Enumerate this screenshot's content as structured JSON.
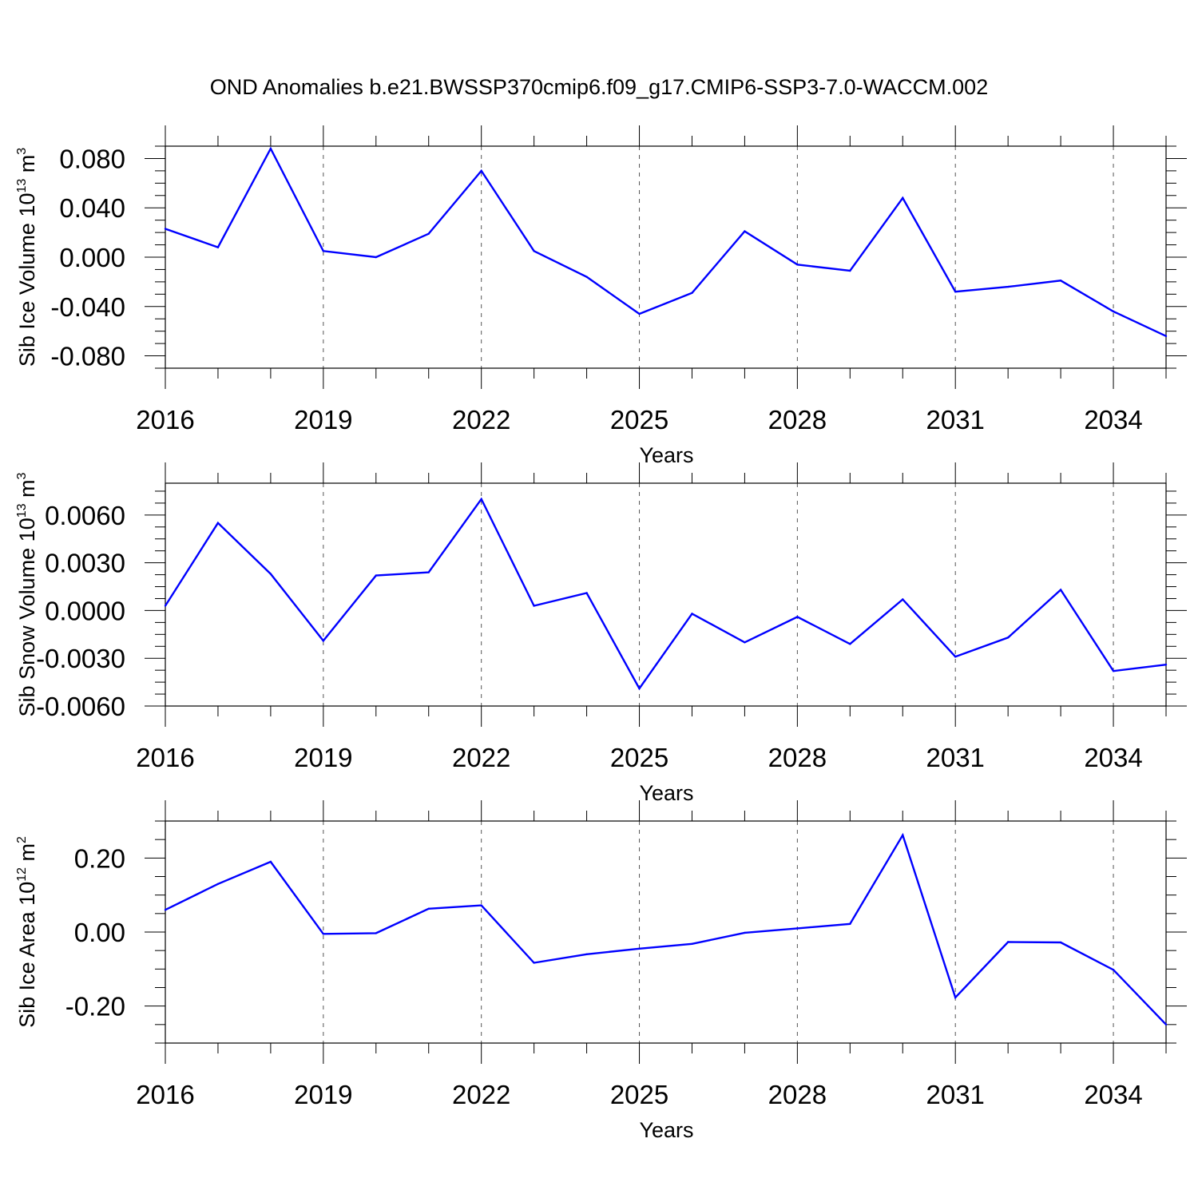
{
  "title": "OND Anomalies b.e21.BWSSP370cmip6.f09_g17.CMIP6-SSP3-7.0-WACCM.002",
  "chart_data": [
    {
      "type": "line",
      "xlabel": "Years",
      "ylabel_main": "Sib Ice Volume 10",
      "ylabel_exp": "13",
      "ylabel_unit": " m",
      "ylabel_unit_exp": "3",
      "xlim": [
        2016,
        2035
      ],
      "ylim": [
        -0.09,
        0.09
      ],
      "xticks": [
        2016,
        2019,
        2022,
        2025,
        2028,
        2031,
        2034
      ],
      "yticks": [
        0.08,
        0.04,
        0.0,
        -0.04,
        -0.08
      ],
      "ytick_labels": [
        "0.080",
        "0.040",
        "0.000",
        "-0.040",
        "-0.080"
      ],
      "grid": "dashed vertical at labeled years",
      "color": "#0000ff",
      "x": [
        2016,
        2017,
        2018,
        2019,
        2020,
        2021,
        2022,
        2023,
        2024,
        2025,
        2026,
        2027,
        2028,
        2029,
        2030,
        2031,
        2032,
        2033,
        2034,
        2035
      ],
      "y": [
        0.023,
        0.008,
        0.088,
        0.005,
        0.0,
        0.019,
        0.07,
        0.005,
        -0.016,
        -0.046,
        -0.029,
        0.021,
        -0.006,
        -0.011,
        0.048,
        -0.028,
        -0.024,
        -0.019,
        -0.044,
        -0.064
      ]
    },
    {
      "type": "line",
      "xlabel": "Years",
      "ylabel_main": "Sib Snow Volume 10",
      "ylabel_exp": "13",
      "ylabel_unit": " m",
      "ylabel_unit_exp": "3",
      "xlim": [
        2016,
        2035
      ],
      "ylim": [
        -0.006,
        0.008
      ],
      "xticks": [
        2016,
        2019,
        2022,
        2025,
        2028,
        2031,
        2034
      ],
      "yticks": [
        0.006,
        0.003,
        0.0,
        -0.003,
        -0.006
      ],
      "ytick_labels": [
        "0.0060",
        "0.0030",
        "0.0000",
        "-0.0030",
        "-0.0060"
      ],
      "grid": "dashed vertical at labeled years",
      "color": "#0000ff",
      "x": [
        2016,
        2017,
        2018,
        2019,
        2020,
        2021,
        2022,
        2023,
        2024,
        2025,
        2026,
        2027,
        2028,
        2029,
        2030,
        2031,
        2032,
        2033,
        2034,
        2035
      ],
      "y": [
        0.0003,
        0.0055,
        0.0023,
        -0.0019,
        0.0022,
        0.0024,
        0.007,
        0.0003,
        0.0011,
        -0.0049,
        -0.0002,
        -0.002,
        -0.0004,
        -0.0021,
        0.0007,
        -0.0029,
        -0.0017,
        0.0013,
        -0.0038,
        -0.0034
      ]
    },
    {
      "type": "line",
      "xlabel": "Years",
      "ylabel_main": "Sib Ice Area 10",
      "ylabel_exp": "12",
      "ylabel_unit": " m",
      "ylabel_unit_exp": "2",
      "xlim": [
        2016,
        2035
      ],
      "ylim": [
        -0.3,
        0.3
      ],
      "xticks": [
        2016,
        2019,
        2022,
        2025,
        2028,
        2031,
        2034
      ],
      "yticks": [
        0.2,
        0.0,
        -0.2
      ],
      "ytick_labels": [
        "0.20",
        "0.00",
        "-0.20"
      ],
      "grid": "dashed vertical at labeled years",
      "color": "#0000ff",
      "x": [
        2016,
        2017,
        2018,
        2019,
        2020,
        2021,
        2022,
        2023,
        2024,
        2025,
        2026,
        2027,
        2028,
        2029,
        2030,
        2031,
        2032,
        2033,
        2034,
        2035
      ],
      "y": [
        0.06,
        0.13,
        0.19,
        -0.005,
        -0.003,
        0.063,
        0.072,
        -0.083,
        -0.06,
        -0.045,
        -0.032,
        -0.002,
        0.01,
        0.022,
        0.262,
        -0.177,
        -0.027,
        -0.028,
        -0.102,
        -0.25
      ]
    }
  ]
}
